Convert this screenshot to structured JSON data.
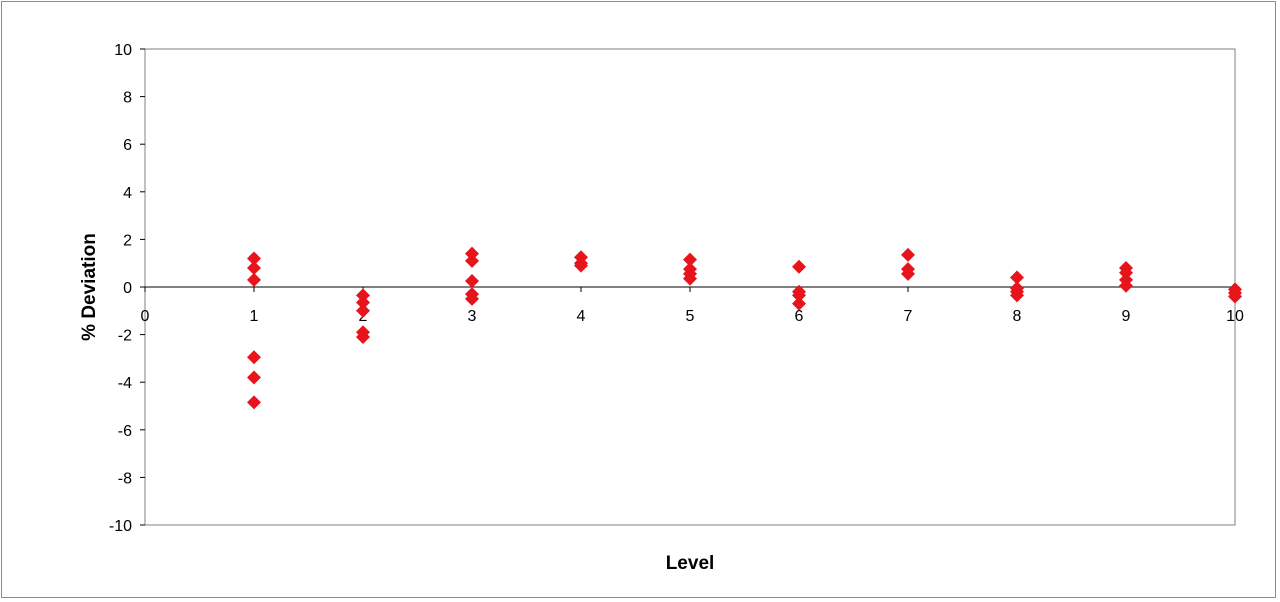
{
  "chart_data": {
    "type": "scatter",
    "xlabel": "Level",
    "ylabel": "% Deviation",
    "xlim": [
      0,
      10
    ],
    "ylim": [
      -10,
      10
    ],
    "x_ticks": [
      0,
      1,
      2,
      3,
      4,
      5,
      6,
      7,
      8,
      9,
      10
    ],
    "y_ticks": [
      10,
      8,
      6,
      4,
      2,
      0,
      -2,
      -4,
      -6,
      -8,
      -10
    ],
    "grid": false,
    "marker": "diamond",
    "marker_color": "#e8141c",
    "series": [
      {
        "points": [
          {
            "x": 1,
            "y": 1.2
          },
          {
            "x": 1,
            "y": 0.8
          },
          {
            "x": 1,
            "y": 0.3
          },
          {
            "x": 1,
            "y": -2.95
          },
          {
            "x": 1,
            "y": -3.8
          },
          {
            "x": 1,
            "y": -4.85
          },
          {
            "x": 2,
            "y": -0.35
          },
          {
            "x": 2,
            "y": -0.65
          },
          {
            "x": 2,
            "y": -1.0
          },
          {
            "x": 2,
            "y": -1.9
          },
          {
            "x": 2,
            "y": -2.1
          },
          {
            "x": 3,
            "y": 1.4
          },
          {
            "x": 3,
            "y": 1.1
          },
          {
            "x": 3,
            "y": 0.25
          },
          {
            "x": 3,
            "y": -0.3
          },
          {
            "x": 3,
            "y": -0.5
          },
          {
            "x": 4,
            "y": 1.25
          },
          {
            "x": 4,
            "y": 1.0
          },
          {
            "x": 4,
            "y": 0.9
          },
          {
            "x": 5,
            "y": 1.15
          },
          {
            "x": 5,
            "y": 0.75
          },
          {
            "x": 5,
            "y": 0.55
          },
          {
            "x": 5,
            "y": 0.35
          },
          {
            "x": 6,
            "y": 0.85
          },
          {
            "x": 6,
            "y": -0.2
          },
          {
            "x": 6,
            "y": -0.35
          },
          {
            "x": 6,
            "y": -0.7
          },
          {
            "x": 7,
            "y": 1.35
          },
          {
            "x": 7,
            "y": 0.75
          },
          {
            "x": 7,
            "y": 0.55
          },
          {
            "x": 8,
            "y": 0.4
          },
          {
            "x": 8,
            "y": -0.05
          },
          {
            "x": 8,
            "y": -0.2
          },
          {
            "x": 8,
            "y": -0.35
          },
          {
            "x": 9,
            "y": 0.8
          },
          {
            "x": 9,
            "y": 0.6
          },
          {
            "x": 9,
            "y": 0.3
          },
          {
            "x": 9,
            "y": 0.05
          },
          {
            "x": 10,
            "y": -0.1
          },
          {
            "x": 10,
            "y": -0.25
          },
          {
            "x": 10,
            "y": -0.4
          }
        ]
      }
    ]
  }
}
